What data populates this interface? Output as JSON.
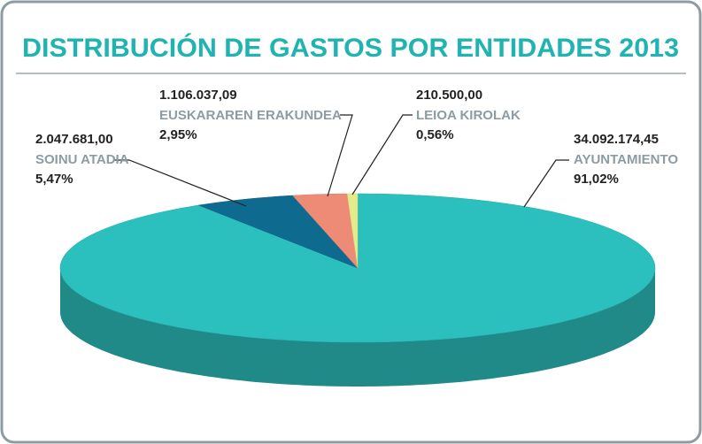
{
  "chart_data": {
    "type": "pie",
    "title": "DISTRIBUCIÓN DE GASTOS POR ENTIDADES 2013",
    "categories": [
      "AYUNTAMIENTO",
      "SOINU ATADIA",
      "EUSKARAREN ERAKUNDEA",
      "LEIOA KIROLAK"
    ],
    "values": [
      91.02,
      5.47,
      2.95,
      0.56
    ],
    "value_labels": [
      "91,02%",
      "5,47%",
      "2,95%",
      "0,56%"
    ],
    "amounts": [
      34092174.45,
      2047681.0,
      1106037.09,
      210500.0
    ],
    "amount_labels": [
      "34.092.174,45",
      "2.047.681,00",
      "1.106.037,09",
      "210.500,00"
    ],
    "colors": [
      "#2bbfbd",
      "#0e6b8f",
      "#ee8b77",
      "#e4eb8c"
    ]
  }
}
